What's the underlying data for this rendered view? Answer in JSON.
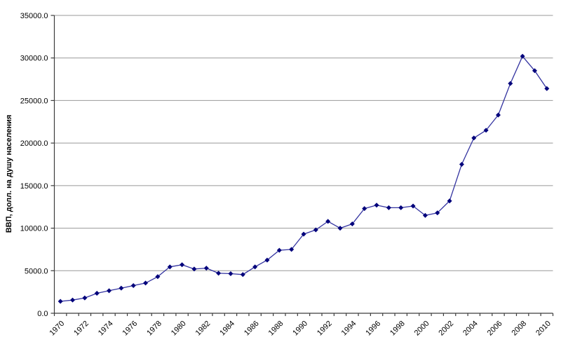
{
  "chart_data": {
    "type": "line",
    "title": "",
    "xlabel": "",
    "ylabel": "ВВП, долл. на душу населения",
    "ylim": [
      0,
      35000
    ],
    "ytick_step": 5000,
    "ytick_format": "one_decimal",
    "x_tick_label_step": 2,
    "x_label_rotation_deg": -45,
    "grid": "horizontal",
    "legend_position": "none",
    "marker_shape": "diamond",
    "colors": {
      "line": "#3333a0",
      "marker": "#00007b",
      "gridline": "#999999",
      "axis": "#3c3c3c",
      "background": "#ffffff",
      "text": "#000000"
    },
    "x": [
      1970,
      1971,
      1972,
      1973,
      1974,
      1975,
      1976,
      1977,
      1978,
      1979,
      1980,
      1981,
      1982,
      1983,
      1984,
      1985,
      1986,
      1987,
      1988,
      1989,
      1990,
      1991,
      1992,
      1993,
      1994,
      1995,
      1996,
      1997,
      1998,
      1999,
      2000,
      2001,
      2002,
      2003,
      2004,
      2005,
      2006,
      2007,
      2008,
      2009,
      2010
    ],
    "values": [
      1400,
      1550,
      1800,
      2350,
      2650,
      2950,
      3250,
      3550,
      4300,
      5450,
      5700,
      5200,
      5300,
      4700,
      4650,
      4550,
      5450,
      6250,
      7400,
      7500,
      9300,
      9800,
      10800,
      10000,
      10500,
      12300,
      12700,
      12400,
      12400,
      12600,
      11500,
      11800,
      13200,
      17500,
      20600,
      21500,
      23300,
      27000,
      30200,
      28500,
      26400
    ],
    "ytick_labels": [
      "0.0",
      "5000.0",
      "10000.0",
      "15000.0",
      "20000.0",
      "25000.0",
      "30000.0",
      "35000.0"
    ],
    "x_tick_labels_shown": [
      "1970",
      "1972",
      "1974",
      "1976",
      "1978",
      "1980",
      "1982",
      "1984",
      "1986",
      "1988",
      "1990",
      "1992",
      "1994",
      "1996",
      "1998",
      "2000",
      "2002",
      "2004",
      "2006",
      "2008",
      "2010"
    ]
  }
}
